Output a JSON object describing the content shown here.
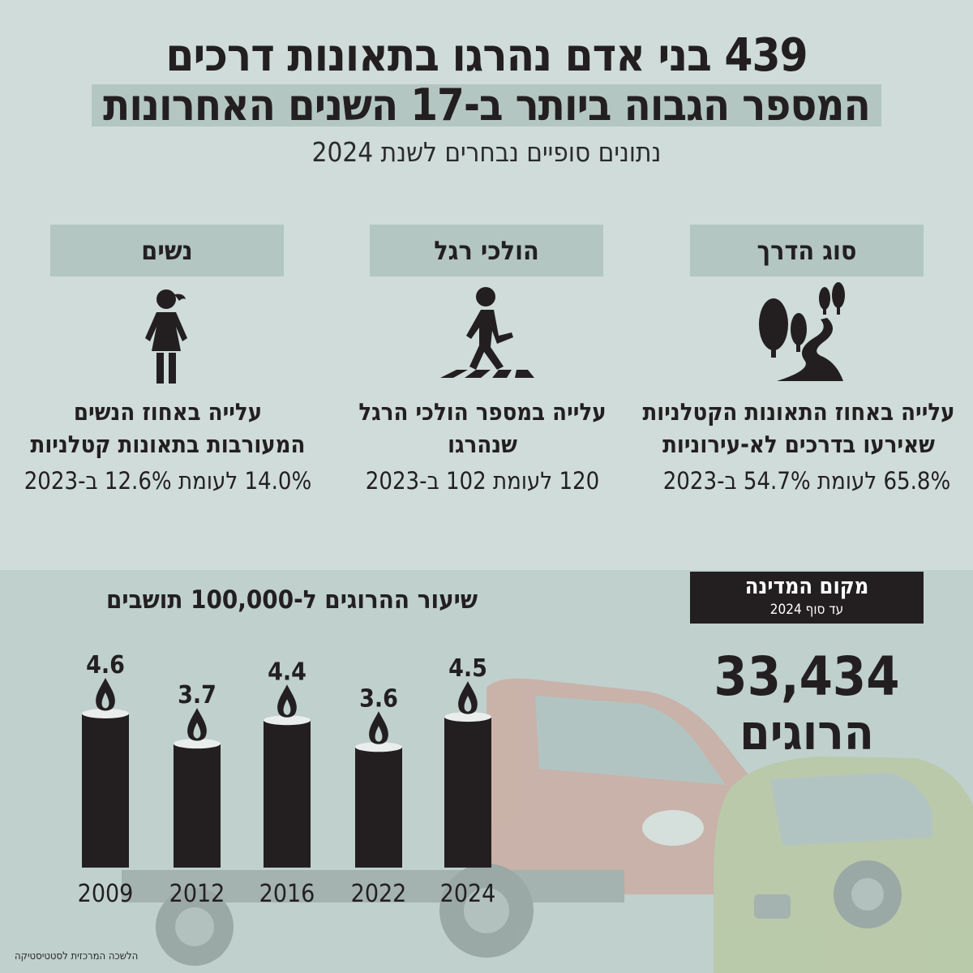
{
  "header": {
    "title_line1": "439 בני אדם נהרגו בתאונות דרכים",
    "title_line2": "המספר הגבוה ביותר ב-17 השנים האחרונות",
    "subtitle": "נתונים סופיים נבחרים לשנת 2024"
  },
  "categories": [
    {
      "label": "סוג הדרך",
      "icon": "winding-road-trees-icon",
      "desc_line1": "עלייה באחוז התאונות הקטלניות",
      "desc_line2": "שאירעו בדרכים לא-עירוניות",
      "value": "65.8% לעומת 54.7% ב-2023"
    },
    {
      "label": "הולכי רגל",
      "icon": "pedestrian-crosswalk-icon",
      "desc_line1": "עלייה במספר הולכי הרגל",
      "desc_line2": "שנהרגו",
      "value": "120 לעומת 102 ב-2023"
    },
    {
      "label": "נשים",
      "icon": "woman-icon",
      "desc_line1": "עלייה באחוז הנשים",
      "desc_line2": "המעורבות בתאונות קטלניות",
      "value": "14.0% לעומת 12.6% ב-2023"
    }
  ],
  "chart_data": {
    "type": "bar",
    "title": "שיעור ההרוגים ל-100,000 תושבים",
    "categories": [
      "2009",
      "2012",
      "2016",
      "2022",
      "2024"
    ],
    "values": [
      4.6,
      3.7,
      4.4,
      3.6,
      4.5
    ],
    "xlabel": "",
    "ylabel": "",
    "ylim": [
      0,
      4.6
    ],
    "grid": false,
    "bar_style": "memorial-candle",
    "bar_color": "#231f20"
  },
  "state_rank": {
    "title": "מקום המדינה",
    "subtitle": "עד סוף 2024",
    "number": "33,434",
    "label": "הרוגים"
  },
  "source": "הלשכה המרכזית לסטטיסטיקה",
  "colors": {
    "background": "#cfdcd9",
    "highlight": "#b3c6c2",
    "dark": "#231f20",
    "lower_panel": "#bfd0cd"
  }
}
